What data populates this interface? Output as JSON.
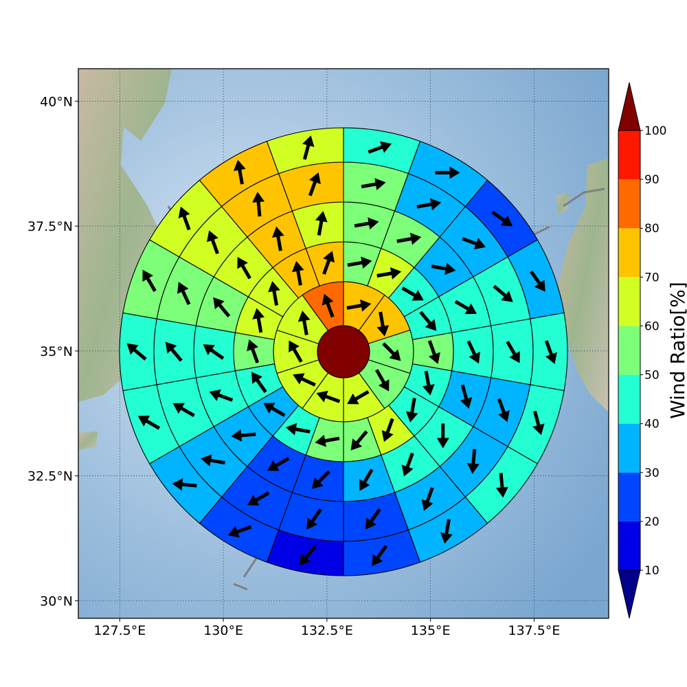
{
  "map": {
    "lon_range": [
      126.5,
      139.3
    ],
    "lat_range": [
      29.65,
      40.65
    ],
    "lon_ticks": [
      {
        "value": 127.5,
        "label": "127.5°E"
      },
      {
        "value": 130.0,
        "label": "130°E"
      },
      {
        "value": 132.5,
        "label": "132.5°E"
      },
      {
        "value": 135.0,
        "label": "135°E"
      },
      {
        "value": 137.5,
        "label": "137.5°E"
      }
    ],
    "lat_ticks": [
      {
        "value": 30.0,
        "label": "30°N"
      },
      {
        "value": 32.5,
        "label": "32.5°N"
      },
      {
        "value": 35.0,
        "label": "35°N"
      },
      {
        "value": 37.5,
        "label": "37.5°N"
      },
      {
        "value": 40.0,
        "label": "40°N"
      }
    ],
    "gridlines": true,
    "center_ratio": 100,
    "rings_ratio": [
      [
        70,
        70,
        50,
        50,
        60,
        60,
        60,
        60,
        60,
        80
      ],
      [
        50,
        60,
        40,
        40,
        50,
        40,
        40,
        60,
        50,
        50,
        40,
        30,
        40,
        50,
        60,
        60,
        70,
        70
      ],
      [
        50,
        50,
        30,
        40,
        40,
        30,
        40,
        40,
        30,
        20,
        20,
        30,
        40,
        40,
        50,
        60,
        70,
        60
      ],
      [
        50,
        30,
        30,
        40,
        40,
        30,
        30,
        30,
        20,
        20,
        20,
        30,
        40,
        40,
        50,
        60,
        70,
        70
      ],
      [
        40,
        30,
        20,
        30,
        40,
        40,
        40,
        30,
        20,
        10,
        20,
        30,
        40,
        40,
        50,
        60,
        70,
        60
      ]
    ],
    "rings_dir": [
      [
        80,
        170,
        135,
        150,
        240,
        290,
        295,
        330,
        350,
        340
      ],
      [
        80,
        80,
        120,
        140,
        160,
        170,
        190,
        200,
        220,
        260,
        280,
        300,
        325,
        340,
        350,
        350,
        350,
        20
      ],
      [
        80,
        80,
        100,
        120,
        155,
        165,
        180,
        200,
        210,
        225,
        240,
        265,
        290,
        305,
        320,
        330,
        350,
        10
      ],
      [
        80,
        80,
        110,
        130,
        150,
        160,
        185,
        200,
        215,
        215,
        240,
        280,
        300,
        320,
        335,
        340,
        355,
        20
      ],
      [
        70,
        90,
        125,
        145,
        160,
        165,
        175,
        190,
        215,
        220,
        250,
        275,
        300,
        310,
        330,
        340,
        350,
        15
      ]
    ]
  },
  "colorbar": {
    "title": "Wind Ratio[%]",
    "levels": [
      10,
      20,
      30,
      40,
      50,
      60,
      70,
      80,
      90,
      100
    ],
    "colors": [
      "#00008c",
      "#0000e6",
      "#0046ff",
      "#00b4ff",
      "#23ffd2",
      "#7dff7a",
      "#d2ff23",
      "#ffc400",
      "#ff6a00",
      "#ff1800",
      "#800000"
    ]
  }
}
